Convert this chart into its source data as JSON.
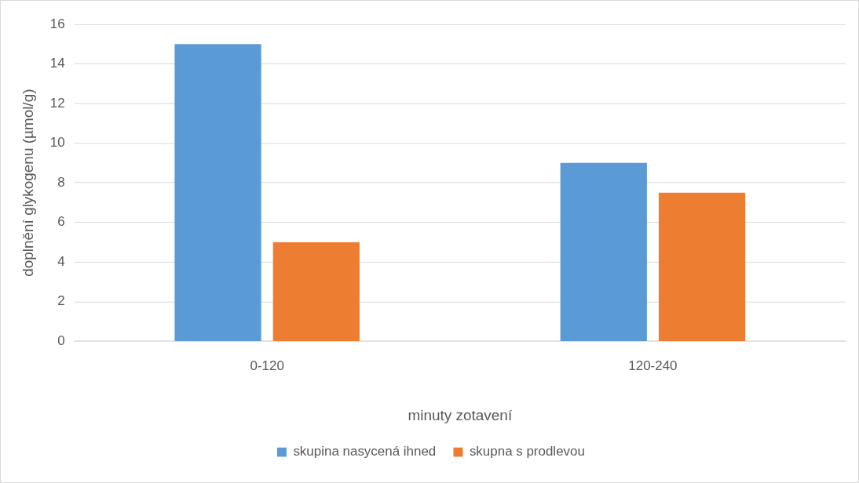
{
  "chart_data": {
    "type": "bar",
    "xlabel": "minuty zotavení",
    "ylabel": "doplnění glykogenu (µmol/g)",
    "categories": [
      "0-120",
      "120-240"
    ],
    "series": [
      {
        "name": "skupina nasycená ihned",
        "color": "#5b9bd5",
        "values": [
          15,
          9
        ]
      },
      {
        "name": "skupna s prodlevou",
        "color": "#ed7d31",
        "values": [
          5,
          7.5
        ]
      }
    ],
    "ylim": [
      0,
      16
    ],
    "yticks": [
      0,
      2,
      4,
      6,
      8,
      10,
      12,
      14,
      16
    ],
    "grid": "y",
    "legend": "bottom"
  }
}
